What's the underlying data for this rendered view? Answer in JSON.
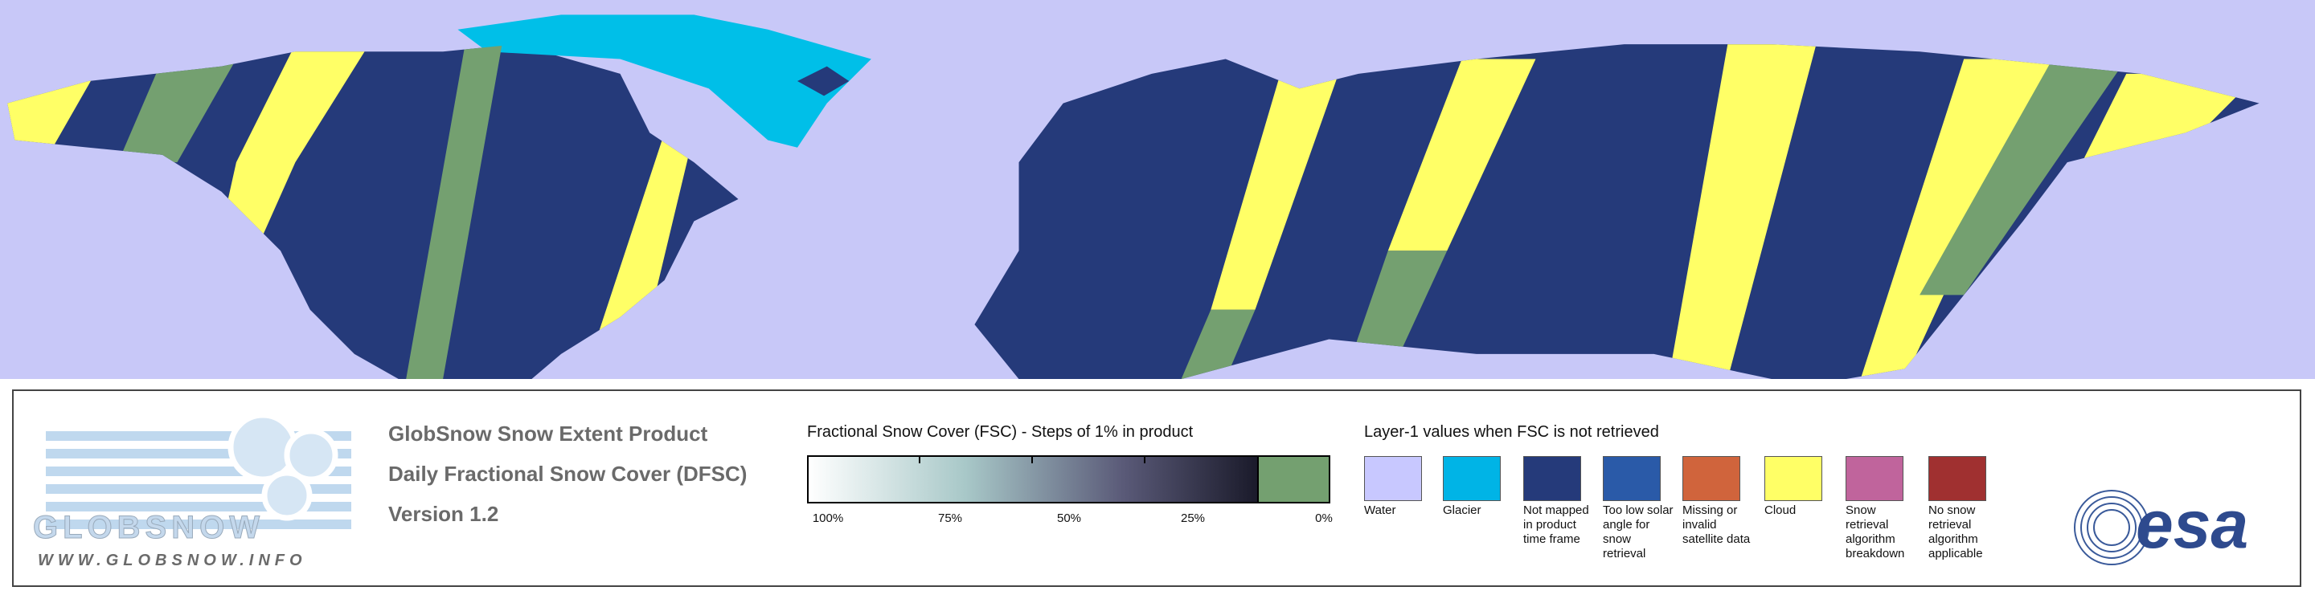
{
  "logo": {
    "name": "GLOBSNOW",
    "url": "WWW.GLOBSNOW.INFO"
  },
  "header": {
    "title": "GlobSnow Snow Extent Product",
    "subtitle": "Daily Fractional Snow Cover (DFSC)",
    "version": "Version 1.2"
  },
  "fsc_legend": {
    "title": "Fractional Snow Cover (FSC) - Steps of 1% in product",
    "ticks": [
      "100%",
      "75%",
      "50%",
      "25%",
      "0%"
    ]
  },
  "layer_legend": {
    "title": "Layer-1 values when FSC is not retrieved",
    "items": [
      {
        "label": "Water",
        "color": "#c8c8ff"
      },
      {
        "label": "Glacier",
        "color": "#00b4e6"
      },
      {
        "label": "Not mapped in product time frame",
        "color": "#253a7a"
      },
      {
        "label": "Too low solar angle for snow retrieval",
        "color": "#2a5aa8"
      },
      {
        "label": "Missing or invalid satellite data",
        "color": "#d0643c"
      },
      {
        "label": "Cloud",
        "color": "#ffff66"
      },
      {
        "label": "Snow retrieval algorithm breakdown",
        "color": "#c0649c"
      },
      {
        "label": "No snow retrieval algorithm applicable",
        "color": "#a03030"
      }
    ]
  },
  "agency": "esa"
}
